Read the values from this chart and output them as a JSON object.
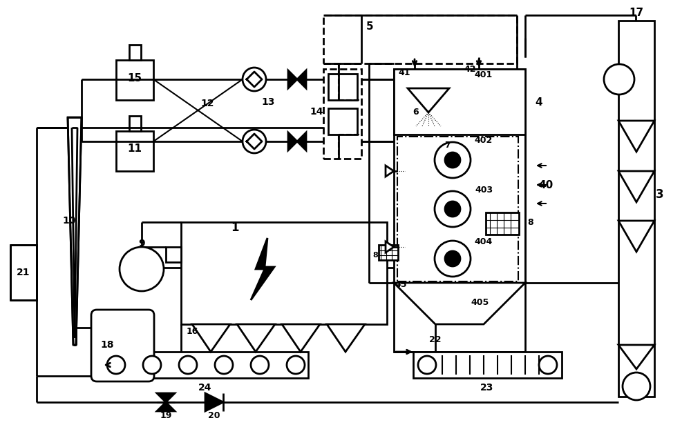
{
  "bg": "#ffffff",
  "lc": "#000000",
  "lw": 2.0
}
